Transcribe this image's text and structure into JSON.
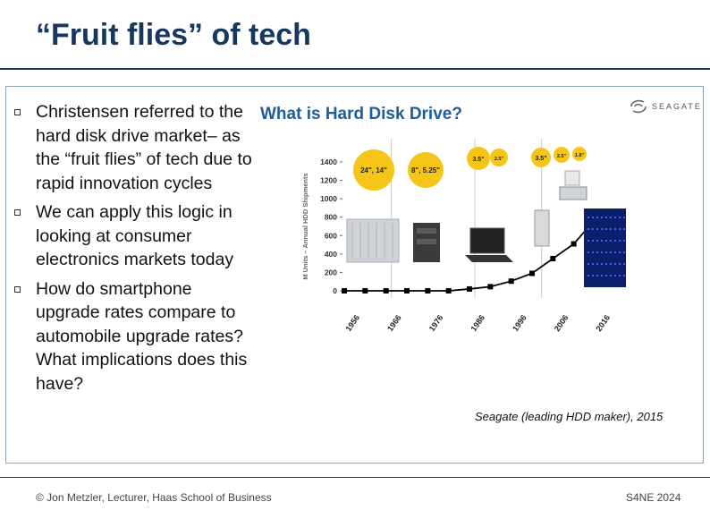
{
  "slide": {
    "title": "“Fruit flies” of tech",
    "bullets": [
      "Christensen referred to the hard disk drive market– as the “fruit flies” of tech due to rapid innovation cycles",
      "We can apply this logic in looking at consumer electronics markets today",
      "How do smartphone upgrade rates compare to automobile upgrade rates? What implications does this have?"
    ],
    "chart_heading": "What is Hard Disk Drive?",
    "logo_text": "SEAGATE",
    "source": "Seagate (leading HDD maker), 2015"
  },
  "footer": {
    "left": "© Jon Metzler, Lecturer, Haas School of Business",
    "right": "S4NE 2024"
  },
  "colors": {
    "title": "#17375e",
    "chart_heading": "#1f5c99",
    "bubble": "#f5c518",
    "line": "#000000"
  },
  "chart_data": {
    "type": "line",
    "title": "",
    "ylabel": "M Units – Annual HDD Shipments",
    "xlabel": "",
    "ylim": [
      0,
      1400
    ],
    "yticks": [
      0,
      200,
      400,
      600,
      800,
      1000,
      1200,
      1400
    ],
    "xticks": [
      "1956",
      "1966",
      "1976",
      "1986",
      "1996",
      "2006",
      "2016"
    ],
    "x": [
      1956,
      1961,
      1966,
      1971,
      1976,
      1981,
      1986,
      1991,
      1996,
      2001,
      2006,
      2011,
      2016
    ],
    "series": [
      {
        "values": [
          0,
          0,
          0,
          0,
          0,
          0,
          20,
          45,
          105,
          190,
          350,
          510,
          770
        ]
      }
    ],
    "form_factor_bubbles": [
      {
        "era": "1956-1966",
        "labels": [
          "24\", 14\""
        ]
      },
      {
        "era": "1966-1986",
        "labels": [
          "8\", 5.25\""
        ]
      },
      {
        "era": "1986-2002",
        "labels": [
          "3.5\"",
          "2.5\""
        ]
      },
      {
        "era": "2002-2016",
        "labels": [
          "3.5\"",
          "2.5\"",
          "1.8\""
        ]
      }
    ],
    "grid": false
  }
}
